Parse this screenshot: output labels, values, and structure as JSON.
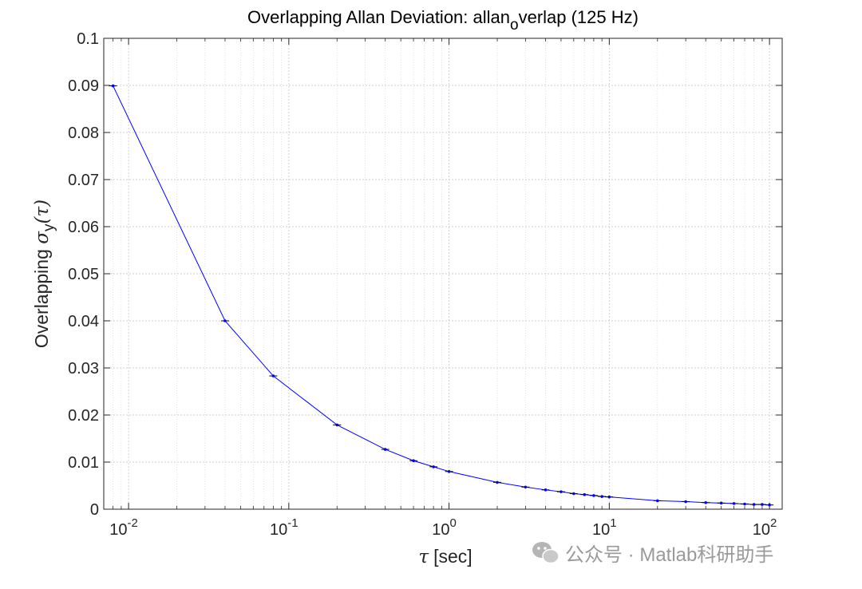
{
  "chart_data": {
    "type": "line",
    "title_main": "Overlapping Allan Deviation: allan",
    "title_sub": "o",
    "title_tail": "verlap (125 Hz)",
    "ylabel_prefix": "Overlapping ",
    "ylabel_sigma": "σ",
    "ylabel_sub": "y",
    "ylabel_tail": "(τ)",
    "xlabel_tau": "τ",
    "xlabel_unit": "[sec]",
    "xscale": "log",
    "xlim": [
      0.007,
      120
    ],
    "ylim": [
      0,
      0.1
    ],
    "grid": true,
    "yticks": [
      0,
      0.01,
      0.02,
      0.03,
      0.04,
      0.05,
      0.06,
      0.07,
      0.08,
      0.09,
      0.1
    ],
    "ytick_labels": [
      "0",
      "0.01",
      "0.02",
      "0.03",
      "0.04",
      "0.05",
      "0.06",
      "0.07",
      "0.08",
      "0.09",
      "0.1"
    ],
    "xticks": [
      {
        "value": 0.01,
        "base": "10",
        "exp": "-2"
      },
      {
        "value": 0.1,
        "base": "10",
        "exp": "-1"
      },
      {
        "value": 1,
        "base": "10",
        "exp": "0"
      },
      {
        "value": 10,
        "base": "10",
        "exp": "1"
      },
      {
        "value": 100,
        "base": "10",
        "exp": "2"
      }
    ],
    "series": [
      {
        "name": "allan_overlap",
        "color": "#0000ff",
        "x": [
          0.008,
          0.04,
          0.08,
          0.2,
          0.4,
          0.6,
          0.8,
          1,
          2,
          3,
          4,
          5,
          6,
          7,
          8,
          9,
          10,
          20,
          30,
          40,
          50,
          60,
          70,
          80,
          90,
          100
        ],
        "y": [
          0.0899,
          0.04,
          0.0283,
          0.0179,
          0.0127,
          0.0103,
          0.009,
          0.008,
          0.0057,
          0.0047,
          0.0041,
          0.0037,
          0.0033,
          0.0031,
          0.0029,
          0.0027,
          0.0026,
          0.0018,
          0.0016,
          0.0014,
          0.0013,
          0.0012,
          0.0011,
          0.001,
          0.001,
          0.0009
        ]
      }
    ]
  },
  "watermark": {
    "text": "公众号 · Matlab科研助手",
    "icon": "wechat-icon"
  }
}
